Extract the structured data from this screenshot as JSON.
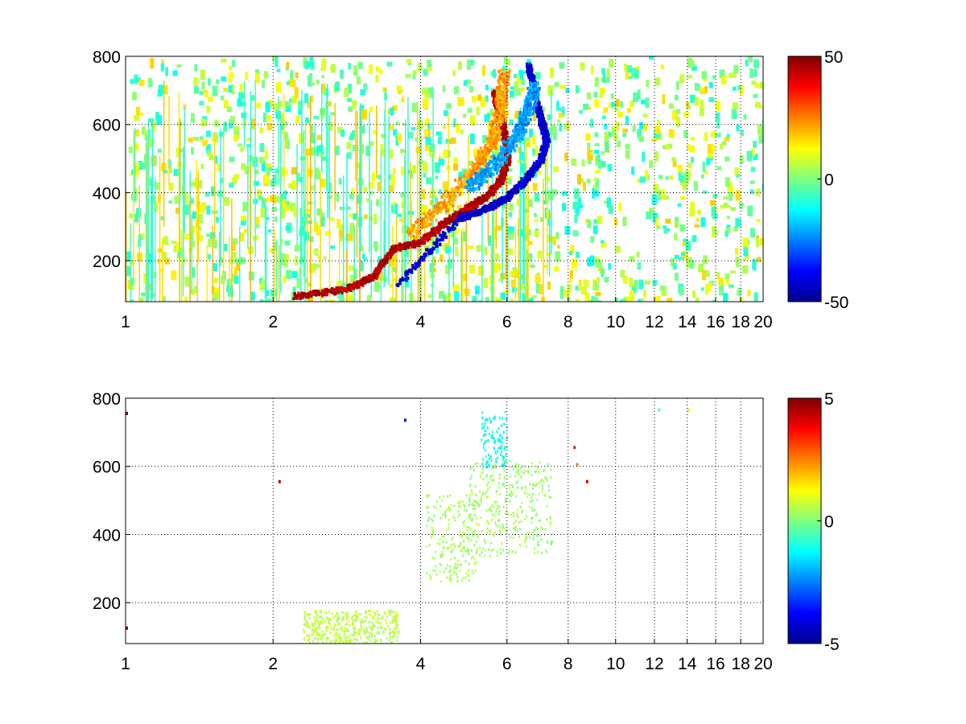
{
  "chart_data": [
    {
      "type": "heatmap",
      "x_scale": "log",
      "xlim": [
        1,
        20
      ],
      "ylim": [
        80,
        800
      ],
      "xticks": [
        1,
        2,
        4,
        6,
        8,
        10,
        12,
        14,
        16,
        18,
        20
      ],
      "xtick_labels": [
        "1",
        "2",
        "4",
        "6",
        "8",
        "10",
        "12",
        "14",
        "16",
        "18",
        "20"
      ],
      "yticks": [
        200,
        400,
        600,
        800
      ],
      "ytick_labels": [
        "200",
        "400",
        "600",
        "800"
      ],
      "grid": true,
      "grid_style": "dotted",
      "colormap": "jet",
      "clim": [
        -50,
        50
      ],
      "colorbar_ticks": [
        -50,
        0,
        50
      ],
      "colorbar_labels": [
        "-50",
        "0",
        "50"
      ],
      "features": [
        {
          "kind": "ridge",
          "value": 45,
          "points": [
            [
              2.2,
              100
            ],
            [
              2.8,
              120
            ],
            [
              3.2,
              160
            ],
            [
              3.5,
              240
            ],
            [
              4.0,
              260
            ],
            [
              4.5,
              320
            ],
            [
              5.0,
              360
            ],
            [
              5.5,
              400
            ],
            [
              5.8,
              440
            ],
            [
              6.0,
              500
            ],
            [
              5.9,
              580
            ],
            [
              5.6,
              700
            ]
          ]
        },
        {
          "kind": "ridge",
          "value": -42,
          "points": [
            [
              3.6,
              140
            ],
            [
              4.8,
              330
            ],
            [
              5.5,
              360
            ],
            [
              6.0,
              390
            ],
            [
              6.5,
              440
            ],
            [
              7.0,
              500
            ],
            [
              7.2,
              560
            ],
            [
              7.0,
              620
            ],
            [
              6.8,
              700
            ],
            [
              6.6,
              780
            ]
          ]
        },
        {
          "kind": "band",
          "value": 22,
          "points": [
            [
              3.8,
              280
            ],
            [
              4.5,
              380
            ],
            [
              5.2,
              480
            ],
            [
              5.6,
              560
            ],
            [
              5.8,
              660
            ],
            [
              5.9,
              760
            ]
          ]
        },
        {
          "kind": "band",
          "value": -22,
          "points": [
            [
              5.0,
              420
            ],
            [
              5.6,
              480
            ],
            [
              6.2,
              560
            ],
            [
              6.6,
              640
            ],
            [
              6.8,
              720
            ]
          ]
        }
      ],
      "noise": {
        "x_range": [
          1,
          20
        ],
        "value_range": [
          -12,
          18
        ]
      }
    },
    {
      "type": "heatmap",
      "x_scale": "log",
      "xlim": [
        1,
        20
      ],
      "ylim": [
        80,
        800
      ],
      "xticks": [
        1,
        2,
        4,
        6,
        8,
        10,
        12,
        14,
        16,
        18,
        20
      ],
      "xtick_labels": [
        "1",
        "2",
        "4",
        "6",
        "8",
        "10",
        "12",
        "14",
        "16",
        "18",
        "20"
      ],
      "yticks": [
        200,
        400,
        600,
        800
      ],
      "ytick_labels": [
        "200",
        "400",
        "600",
        "800"
      ],
      "grid": true,
      "grid_style": "dotted",
      "colormap": "jet",
      "clim": [
        -5,
        5
      ],
      "colorbar_ticks": [
        -5,
        0,
        5
      ],
      "colorbar_labels": [
        "-5",
        "0",
        "5"
      ],
      "regions": [
        {
          "kind": "blob",
          "value": 0.4,
          "x_range": [
            4.1,
            5.2
          ],
          "y_range": [
            260,
            520
          ]
        },
        {
          "kind": "blob",
          "value": 0.3,
          "x_range": [
            5.0,
            7.4
          ],
          "y_range": [
            340,
            620
          ]
        },
        {
          "kind": "blob",
          "value": 0.6,
          "x_range": [
            2.3,
            3.6
          ],
          "y_range": [
            85,
            180
          ]
        },
        {
          "kind": "blob",
          "value": -1.2,
          "x_range": [
            5.3,
            6.0
          ],
          "y_range": [
            600,
            770
          ]
        }
      ],
      "outliers": [
        {
          "x": 8.2,
          "y": 660,
          "value": 3.5
        },
        {
          "x": 8.3,
          "y": 610,
          "value": 2.5
        },
        {
          "x": 8.7,
          "y": 560,
          "value": 4.2
        },
        {
          "x": 2.05,
          "y": 560,
          "value": 4.5
        },
        {
          "x": 1.0,
          "y": 760,
          "value": 5
        },
        {
          "x": 1.0,
          "y": 130,
          "value": 5
        },
        {
          "x": 3.7,
          "y": 740,
          "value": -3.5
        },
        {
          "x": 12.2,
          "y": 770,
          "value": -0.5
        },
        {
          "x": 14.0,
          "y": 770,
          "value": 1.5
        }
      ]
    }
  ]
}
